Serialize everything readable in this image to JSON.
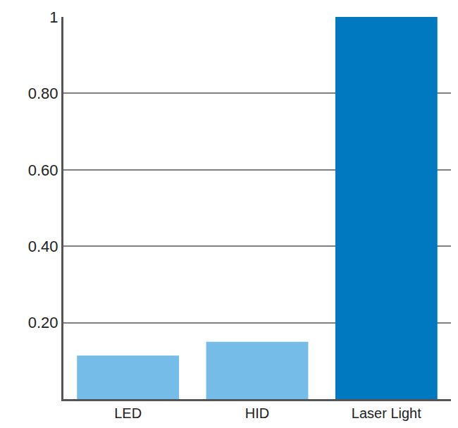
{
  "chart_data": {
    "type": "bar",
    "categories": [
      "LED",
      "HID",
      "Laser Light"
    ],
    "values": [
      0.114,
      0.15,
      1
    ],
    "colors": [
      "#76bce8",
      "#76bce8",
      "#0079c1"
    ],
    "ylim": [
      0,
      1
    ],
    "yticks": [
      {
        "value": 0.2,
        "label": "0.20"
      },
      {
        "value": 0.4,
        "label": "0.40"
      },
      {
        "value": 0.6,
        "label": "0.60"
      },
      {
        "value": 0.8,
        "label": "0.80"
      },
      1
    ],
    "grid": true
  }
}
